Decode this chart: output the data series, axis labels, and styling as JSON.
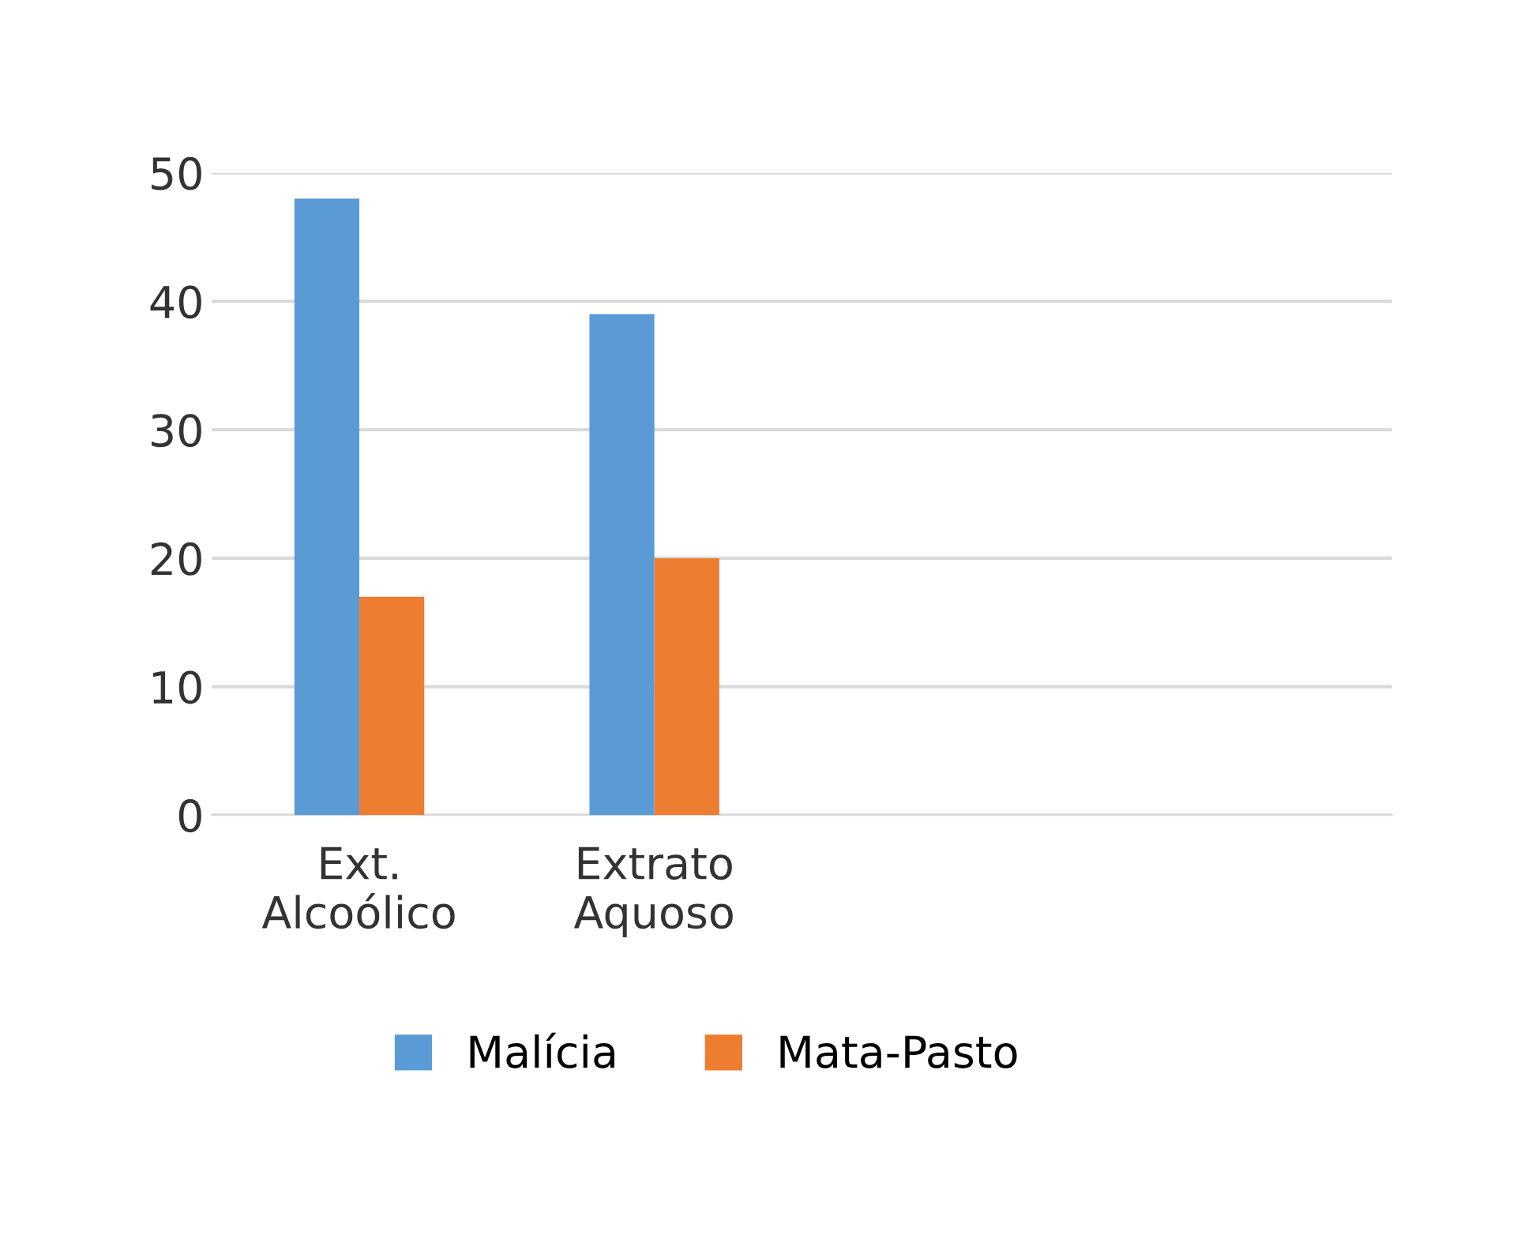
{
  "chart_data": {
    "type": "bar",
    "categories": [
      "Ext.\nAlcoólico",
      "Extrato\nAquoso",
      null,
      null
    ],
    "series": [
      {
        "name": "Malícia",
        "color": "#5b9bd5",
        "values": [
          48,
          39,
          null,
          null
        ]
      },
      {
        "name": "Mata-Pasto",
        "color": "#ed7d31",
        "values": [
          17,
          20,
          null,
          null
        ]
      }
    ],
    "ylim": [
      0,
      50
    ],
    "yticks": [
      0,
      10,
      20,
      30,
      40,
      50
    ],
    "grid": "y",
    "legend": "bottom"
  }
}
